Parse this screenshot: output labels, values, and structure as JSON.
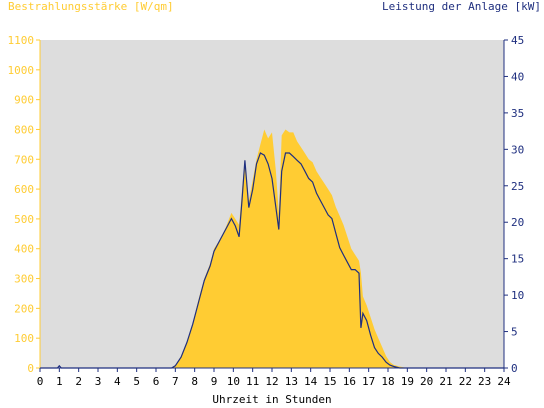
{
  "colors": {
    "plot_bg": "#dddddd",
    "irradiance": "#ffcc33",
    "power": "#1f2f7f",
    "left_axis": "#ffcc33",
    "right_axis": "#1f2f7f",
    "x_axis": "#000000"
  },
  "chart_data": {
    "type": "area",
    "left_axis_title": "Bestrahlungsstärke [W/qm]",
    "right_axis_title": "Leistung der Anlage [kW]",
    "xlabel": "Uhrzeit in Stunden",
    "x_ticks": [
      "0",
      "1",
      "2",
      "3",
      "4",
      "5",
      "6",
      "7",
      "8",
      "9",
      "10",
      "11",
      "12",
      "13",
      "14",
      "15",
      "16",
      "17",
      "18",
      "19",
      "20",
      "21",
      "22",
      "23",
      "24"
    ],
    "left_ticks": [
      "0",
      "100",
      "200",
      "300",
      "400",
      "500",
      "600",
      "700",
      "800",
      "900",
      "1000",
      "1100"
    ],
    "right_ticks": [
      "0",
      "5",
      "10",
      "15",
      "20",
      "25",
      "30",
      "35",
      "40",
      "45"
    ],
    "xlim": [
      0,
      24
    ],
    "ylim_left": [
      0,
      1100
    ],
    "ylim_right": [
      0,
      45
    ],
    "grid": false,
    "series": [
      {
        "name": "Bestrahlungsstärke [W/qm]",
        "axis": "left",
        "style": "area",
        "x": [
          0,
          6.8,
          7.0,
          7.3,
          7.6,
          7.9,
          8.2,
          8.5,
          8.8,
          9.0,
          9.3,
          9.6,
          9.9,
          10.1,
          10.3,
          10.45,
          10.6,
          10.8,
          11.0,
          11.2,
          11.4,
          11.6,
          11.8,
          12.0,
          12.2,
          12.35,
          12.5,
          12.7,
          12.9,
          13.1,
          13.3,
          13.5,
          13.7,
          13.9,
          14.1,
          14.3,
          14.5,
          14.7,
          14.9,
          15.1,
          15.3,
          15.5,
          15.7,
          15.9,
          16.1,
          16.3,
          16.5,
          16.6,
          16.7,
          16.9,
          17.1,
          17.3,
          17.5,
          17.7,
          17.9,
          18.1,
          18.3,
          18.6,
          19.0,
          24
        ],
        "y": [
          0,
          0,
          10,
          40,
          90,
          150,
          230,
          300,
          350,
          400,
          430,
          470,
          520,
          500,
          480,
          600,
          700,
          560,
          630,
          700,
          750,
          800,
          770,
          790,
          660,
          520,
          780,
          800,
          790,
          790,
          760,
          740,
          720,
          700,
          690,
          660,
          640,
          620,
          600,
          580,
          540,
          510,
          480,
          440,
          400,
          380,
          360,
          320,
          240,
          210,
          170,
          130,
          100,
          70,
          40,
          20,
          10,
          5,
          0,
          0
        ]
      },
      {
        "name": "Leistung der Anlage [kW]",
        "axis": "right",
        "style": "line",
        "x": [
          0,
          0.9,
          1.0,
          1.1,
          6.8,
          7.0,
          7.3,
          7.6,
          7.9,
          8.2,
          8.5,
          8.8,
          9.0,
          9.3,
          9.6,
          9.9,
          10.1,
          10.3,
          10.45,
          10.6,
          10.8,
          11.0,
          11.2,
          11.4,
          11.6,
          11.8,
          12.0,
          12.2,
          12.35,
          12.5,
          12.7,
          12.9,
          13.1,
          13.3,
          13.5,
          13.7,
          13.9,
          14.1,
          14.3,
          14.5,
          14.7,
          14.9,
          15.1,
          15.3,
          15.5,
          15.7,
          15.9,
          16.1,
          16.3,
          16.5,
          16.6,
          16.7,
          16.9,
          17.1,
          17.3,
          17.5,
          17.7,
          17.9,
          18.1,
          18.3,
          18.6,
          19.0,
          24
        ],
        "y": [
          0,
          0,
          0.3,
          0,
          0,
          0.3,
          1.5,
          3.5,
          6,
          9,
          12,
          14,
          16,
          17.5,
          19,
          20.5,
          19.5,
          18,
          23,
          28.5,
          22,
          24.5,
          28,
          29.5,
          29.2,
          28,
          26,
          22,
          19,
          27,
          29.5,
          29.5,
          29,
          28.5,
          28,
          27,
          26,
          25.5,
          24,
          23,
          22,
          21,
          20.5,
          18.5,
          16.5,
          15.5,
          14.5,
          13.5,
          13.5,
          13,
          5.5,
          7.5,
          6.5,
          4.5,
          2.8,
          2,
          1.5,
          0.8,
          0.4,
          0.2,
          0,
          0,
          0
        ]
      }
    ]
  }
}
